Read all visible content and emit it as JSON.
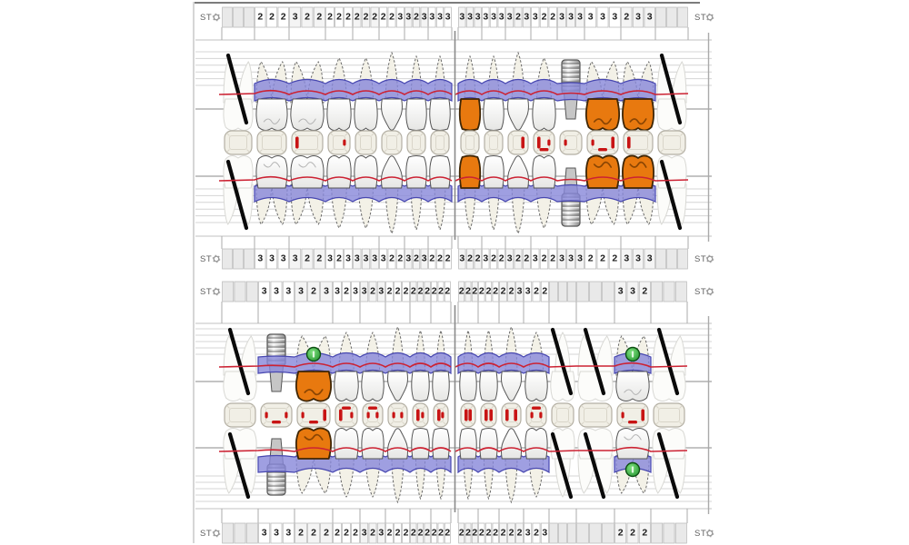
{
  "st_label": "ST",
  "colors": {
    "gum_band": "rgba(135,135,218,0.8)",
    "gum_band_border": "#4747b0",
    "gingival_line": "#cc2233",
    "restoration": "#e8790f",
    "restoration_outline": "#3f2605",
    "implant_body": "#c9c9c9",
    "green_marker": "#2aa23a",
    "missing_slash": "#0a0a0a",
    "grid_line": "#d4d4d4",
    "grid_line_dark": "#a0a0a0",
    "box_border": "#bcbcbc",
    "box_fill_missing": "#e9e9e9",
    "box_fill_alt": "#f4f4f4",
    "number_text": "#1c1c1c",
    "st_text": "#606060",
    "occlusal_fill": "#f1efe6",
    "occlusal_border": "#b3afa3",
    "occlusal_inner": "#d9d5c9",
    "occlusal_mark": "#c81414",
    "tooth_fill": "#f8f8f6",
    "tooth_outline": "#555555",
    "root_fill": "#f3f1e7",
    "faint_outline": "#d8d8d4"
  },
  "charts": [
    {
      "id": "upper-arch",
      "probing": {
        "top_left": [
          null,
          [
            2,
            2,
            2
          ],
          [
            3,
            2,
            2
          ],
          [
            2,
            2,
            2
          ],
          [
            2,
            2,
            2
          ],
          [
            2,
            2,
            3
          ],
          [
            3,
            2,
            3
          ],
          [
            3,
            3,
            3
          ]
        ],
        "top_right": [
          [
            3,
            3,
            3
          ],
          [
            3,
            3,
            3
          ],
          [
            3,
            2,
            3
          ],
          [
            3,
            2,
            2
          ],
          [
            3,
            3,
            3
          ],
          [
            3,
            3,
            3
          ],
          [
            2,
            3,
            3
          ],
          null
        ],
        "bottom_left": [
          null,
          [
            3,
            3,
            3
          ],
          [
            3,
            2,
            2
          ],
          [
            3,
            2,
            3
          ],
          [
            3,
            3,
            3
          ],
          [
            3,
            2,
            2
          ],
          [
            3,
            2,
            3
          ],
          [
            2,
            2,
            2
          ]
        ],
        "bottom_right": [
          [
            3,
            2,
            2
          ],
          [
            3,
            2,
            2
          ],
          [
            3,
            2,
            2
          ],
          [
            3,
            2,
            2
          ],
          [
            3,
            3,
            3
          ],
          [
            2,
            2,
            2
          ],
          [
            3,
            3,
            3
          ],
          null
        ]
      },
      "teeth": {
        "left": [
          {
            "type": "molar",
            "state": "missing"
          },
          {
            "type": "molar",
            "state": "normal"
          },
          {
            "type": "molar",
            "state": "normal"
          },
          {
            "type": "premolar",
            "state": "normal"
          },
          {
            "type": "premolar",
            "state": "normal"
          },
          {
            "type": "canine",
            "state": "normal"
          },
          {
            "type": "incisor",
            "state": "normal"
          },
          {
            "type": "incisor",
            "state": "normal"
          }
        ],
        "right": [
          {
            "type": "incisor",
            "state": "normal",
            "crown": "orange"
          },
          {
            "type": "incisor",
            "state": "normal"
          },
          {
            "type": "canine",
            "state": "normal"
          },
          {
            "type": "premolar",
            "state": "normal"
          },
          {
            "type": "premolar",
            "state": "implant"
          },
          {
            "type": "molar",
            "state": "normal",
            "crown": "orange"
          },
          {
            "type": "molar",
            "state": "normal",
            "crown": "orange"
          },
          {
            "type": "molar",
            "state": "missing"
          }
        ]
      },
      "occlusal_marks": {
        "left": [
          [],
          [],
          [
            "L"
          ],
          [
            "r"
          ],
          [],
          [],
          [],
          []
        ],
        "right": [
          [],
          [],
          [
            "R"
          ],
          [
            "L",
            "B",
            "r"
          ],
          [
            "l"
          ],
          [
            "l",
            "B",
            "R"
          ],
          [
            "L"
          ],
          []
        ]
      }
    },
    {
      "id": "lower-arch",
      "probing": {
        "top_left": [
          null,
          [
            3,
            3,
            3
          ],
          [
            3,
            2,
            3
          ],
          [
            3,
            2,
            3
          ],
          [
            3,
            2,
            3
          ],
          [
            2,
            2,
            2
          ],
          [
            2,
            2,
            2
          ],
          [
            2,
            2,
            2
          ]
        ],
        "top_right": [
          [
            2,
            2,
            2
          ],
          [
            2,
            2,
            2
          ],
          [
            2,
            2,
            3
          ],
          [
            3,
            2,
            2
          ],
          null,
          null,
          [
            3,
            3,
            2
          ],
          null
        ],
        "bottom_left": [
          null,
          [
            3,
            3,
            3
          ],
          [
            2,
            2,
            2
          ],
          [
            2,
            2,
            2
          ],
          [
            3,
            2,
            3
          ],
          [
            2,
            2,
            2
          ],
          [
            2,
            2,
            2
          ],
          [
            2,
            2,
            2
          ]
        ],
        "bottom_right": [
          [
            2,
            2,
            2
          ],
          [
            2,
            2,
            2
          ],
          [
            2,
            2,
            2
          ],
          [
            3,
            2,
            3
          ],
          null,
          null,
          [
            2,
            2,
            2
          ],
          null
        ]
      },
      "teeth": {
        "left": [
          {
            "type": "molar",
            "state": "missing"
          },
          {
            "type": "molar",
            "state": "implant"
          },
          {
            "type": "molar",
            "state": "normal",
            "crown": "orange",
            "green_top": true
          },
          {
            "type": "premolar",
            "state": "normal"
          },
          {
            "type": "premolar",
            "state": "normal"
          },
          {
            "type": "canine",
            "state": "normal"
          },
          {
            "type": "incisor",
            "state": "normal"
          },
          {
            "type": "incisor",
            "state": "normal"
          }
        ],
        "right": [
          {
            "type": "incisor",
            "state": "normal"
          },
          {
            "type": "incisor",
            "state": "normal"
          },
          {
            "type": "canine",
            "state": "normal"
          },
          {
            "type": "premolar",
            "state": "normal"
          },
          {
            "type": "premolar",
            "state": "missing"
          },
          {
            "type": "molar",
            "state": "missing"
          },
          {
            "type": "molar",
            "state": "normal",
            "green_top": true,
            "green_bottom": true
          },
          {
            "type": "molar",
            "state": "missing"
          }
        ]
      },
      "occlusal_marks": {
        "left": [
          [],
          [
            "l",
            "B",
            "r"
          ],
          [
            "l",
            "B",
            "R"
          ],
          [
            "L",
            "T",
            "r"
          ],
          [
            "l",
            "T",
            "r"
          ],
          [
            "l",
            "r"
          ],
          [
            "L",
            "r"
          ],
          [
            "L",
            "r"
          ]
        ],
        "right": [
          [
            "L",
            "R"
          ],
          [
            "L",
            "R"
          ],
          [
            "L",
            "R"
          ],
          [
            "T",
            "l",
            "r"
          ],
          [],
          [],
          [
            "l",
            "B",
            "R"
          ],
          []
        ]
      }
    }
  ]
}
